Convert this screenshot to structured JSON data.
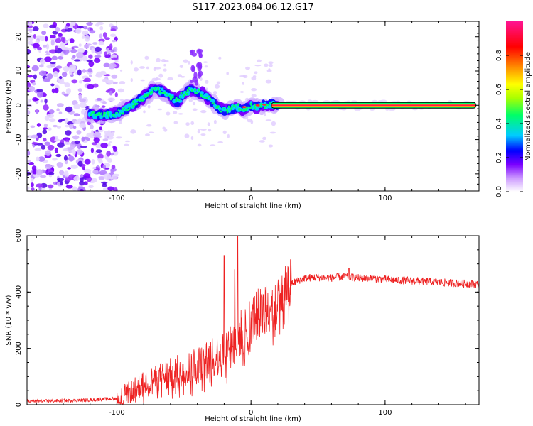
{
  "figure": {
    "title": "S117.2023.084.06.12.G17"
  },
  "chart_data": [
    {
      "type": "heatmap",
      "title": "",
      "xlabel": "Height of straight line (km)",
      "ylabel": "Frequency (Hz)",
      "xlim": [
        -167,
        170
      ],
      "ylim": [
        -25,
        24.5
      ],
      "xticks": [
        -100,
        0,
        100
      ],
      "yticks": [
        -20,
        -10,
        0,
        10,
        20
      ],
      "colorbar": {
        "label": "Normalized spectral amplitude",
        "range": [
          0,
          1
        ],
        "ticks": [
          0.0,
          0.2,
          0.4,
          0.6,
          0.8
        ],
        "tick_labels": [
          "0.0",
          "0.2",
          "0.4",
          "0.6",
          "0.8"
        ],
        "colors": [
          "#ffffff",
          "#cc99ff",
          "#7a00ff",
          "#0000ff",
          "#00ccff",
          "#00ff66",
          "#aaff00",
          "#ffff00",
          "#ff9900",
          "#ff0000",
          "#ff1493"
        ]
      },
      "ridge": {
        "x": [
          -120,
          -110,
          -100,
          -92,
          -85,
          -78,
          -72,
          -66,
          -60,
          -55,
          -50,
          -45,
          -40,
          -35,
          -30,
          -25,
          -20,
          -15,
          -10,
          -5,
          0,
          5,
          10,
          15,
          20,
          60,
          100,
          140,
          168
        ],
        "y": [
          -2.5,
          -2.8,
          -2.5,
          -1.0,
          1.0,
          3.0,
          5.0,
          4.0,
          2.5,
          1.0,
          3.5,
          4.5,
          4.0,
          3.0,
          1.5,
          -0.5,
          -1.5,
          -1.0,
          -0.5,
          -1.5,
          0.0,
          -0.5,
          0.0,
          0.2,
          0.0,
          0.0,
          0.0,
          0.0,
          0.0
        ]
      }
    },
    {
      "type": "line",
      "title": "",
      "xlabel": "Height of straight line (km)",
      "ylabel": "SNR (10 * v/v)",
      "xlim": [
        -167,
        170
      ],
      "ylim": [
        0,
        600
      ],
      "xticks": [
        -100,
        0,
        100
      ],
      "yticks": [
        0,
        200,
        400,
        600
      ],
      "color": "#ee2222",
      "series": [
        {
          "x": [
            -167,
            -140,
            -120,
            -100,
            -90,
            -80,
            -70,
            -60,
            -50,
            -40,
            -30,
            -20,
            -15,
            -10,
            -5,
            0,
            5,
            10,
            15,
            20,
            25,
            30,
            40,
            50,
            60,
            70,
            80,
            90,
            100,
            110,
            120,
            130,
            140,
            150,
            160,
            170
          ],
          "y": [
            12,
            14,
            17,
            22,
            45,
            75,
            95,
            110,
            125,
            140,
            160,
            190,
            220,
            240,
            270,
            300,
            320,
            330,
            360,
            380,
            410,
            430,
            450,
            452,
            450,
            455,
            450,
            448,
            445,
            442,
            440,
            438,
            435,
            432,
            430,
            428
          ],
          "spikes": [
            {
              "x": -20,
              "y": 530
            },
            {
              "x": -10,
              "y": 600
            },
            {
              "x": -12,
              "y": 480
            },
            {
              "x": 73,
              "y": 485
            }
          ]
        }
      ]
    }
  ]
}
